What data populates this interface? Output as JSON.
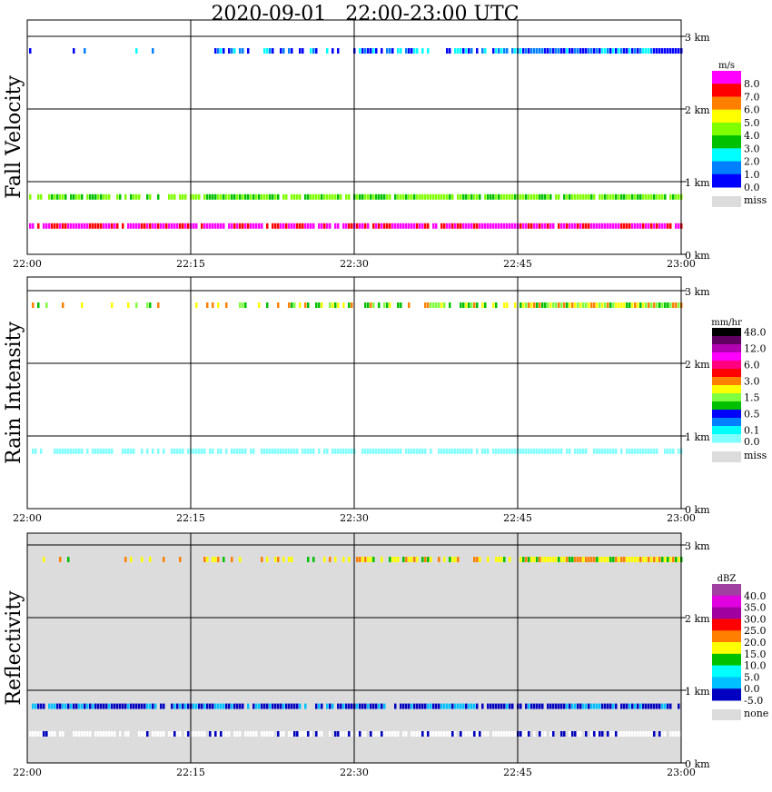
{
  "title": "2020-09-01   22:00-23:00 UTC",
  "chart_data": [
    {
      "type": "heatmap",
      "ylabel": "Fall Velocity",
      "unit": "m/s",
      "ylim": [
        0,
        3
      ],
      "y_ticks": [
        "0 km",
        "1 km",
        "2 km",
        "3 km"
      ],
      "x_ticks": [
        "22:00",
        "22:15",
        "22:30",
        "22:45",
        "23:00"
      ],
      "background": "#ffffff",
      "legend": {
        "labels": [
          "8.0",
          "7.0",
          "6.0",
          "5.0",
          "4.0",
          "3.0",
          "2.0",
          "1.0",
          "0.0"
        ],
        "colors": [
          "#ff00ff",
          "#ff0000",
          "#ff8000",
          "#ffff00",
          "#80ff00",
          "#00c000",
          "#00ffff",
          "#0080ff",
          "#0000ff"
        ],
        "miss_label": "miss"
      },
      "bands": [
        {
          "height_km": 2.8,
          "colors": [
            "#00ffff",
            "#0080ff",
            "#0000ff"
          ],
          "density": [
            0.15,
            0.4,
            0.65,
            1.0
          ]
        },
        {
          "height_km": 0.79,
          "colors": [
            "#80ff00",
            "#00c000",
            "#80ff00"
          ],
          "density": [
            0.8,
            0.85,
            0.9,
            0.9
          ]
        },
        {
          "height_km": 0.39,
          "colors": [
            "#ff00ff",
            "#ff00ff",
            "#ff0000"
          ],
          "density": [
            0.9,
            0.9,
            0.95,
            0.95
          ]
        }
      ]
    },
    {
      "type": "heatmap",
      "ylabel": "Rain Intensity",
      "unit": "mm/hr",
      "ylim": [
        0,
        3
      ],
      "y_ticks": [
        "0 km",
        "1 km",
        "2 km",
        "3 km"
      ],
      "x_ticks": [
        "22:00",
        "22:15",
        "22:30",
        "22:45",
        "23:00"
      ],
      "background": "#ffffff",
      "legend": {
        "labels": [
          "48.0",
          "12.0",
          "6.0",
          "3.0",
          "1.5",
          "0.5",
          "0.1",
          "0.0"
        ],
        "colors": [
          "#000000",
          "#600060",
          "#b000b0",
          "#ff00ff",
          "#ff0080",
          "#ff0000",
          "#ff8000",
          "#ffff00",
          "#80ff40",
          "#00c000",
          "#0000ff",
          "#0080ff",
          "#00ffff",
          "#80ffff"
        ],
        "miss_label": "miss"
      },
      "bands": [
        {
          "height_km": 2.8,
          "colors": [
            "#00c000",
            "#80ff40",
            "#ffff00",
            "#ff8000"
          ],
          "density": [
            0.15,
            0.4,
            0.65,
            1.0
          ]
        },
        {
          "height_km": 0.79,
          "colors": [
            "#80ffff",
            "#80ffff"
          ],
          "density": [
            0.75,
            0.8,
            0.8,
            0.85
          ]
        }
      ]
    },
    {
      "type": "heatmap",
      "ylabel": "Reflectivity",
      "unit": "dBZ",
      "ylim": [
        0,
        3
      ],
      "y_ticks": [
        "0 km",
        "1 km",
        "2 km",
        "3 km"
      ],
      "x_ticks": [
        "22:00",
        "22:15",
        "22:30",
        "22:45",
        "23:00"
      ],
      "background": "#dcdcdc",
      "legend": {
        "labels": [
          "40.0",
          "35.0",
          "30.0",
          "25.0",
          "20.0",
          "15.0",
          "10.0",
          "5.0",
          "0.0",
          "-5.0"
        ],
        "colors": [
          "#a040a0",
          "#e000e0",
          "#a000a0",
          "#ff0000",
          "#ff8000",
          "#ffff00",
          "#00c000",
          "#00ffff",
          "#00c0ff",
          "#0000c0"
        ],
        "miss_label": "none"
      },
      "bands": [
        {
          "height_km": 2.8,
          "colors": [
            "#ffff00",
            "#00c000",
            "#ff8000",
            "#ffff00"
          ],
          "density": [
            0.15,
            0.4,
            0.65,
            1.0
          ]
        },
        {
          "height_km": 0.78,
          "colors": [
            "#0000c0",
            "#00c0ff",
            "#0000c0"
          ],
          "density": [
            0.85,
            0.9,
            0.9,
            0.9
          ]
        },
        {
          "height_km": 0.4,
          "colors": [
            "#ffffff",
            "#ffffff",
            "#ffffff",
            "#0000c0"
          ],
          "density": [
            0.8,
            0.8,
            0.85,
            0.85
          ]
        }
      ]
    }
  ]
}
